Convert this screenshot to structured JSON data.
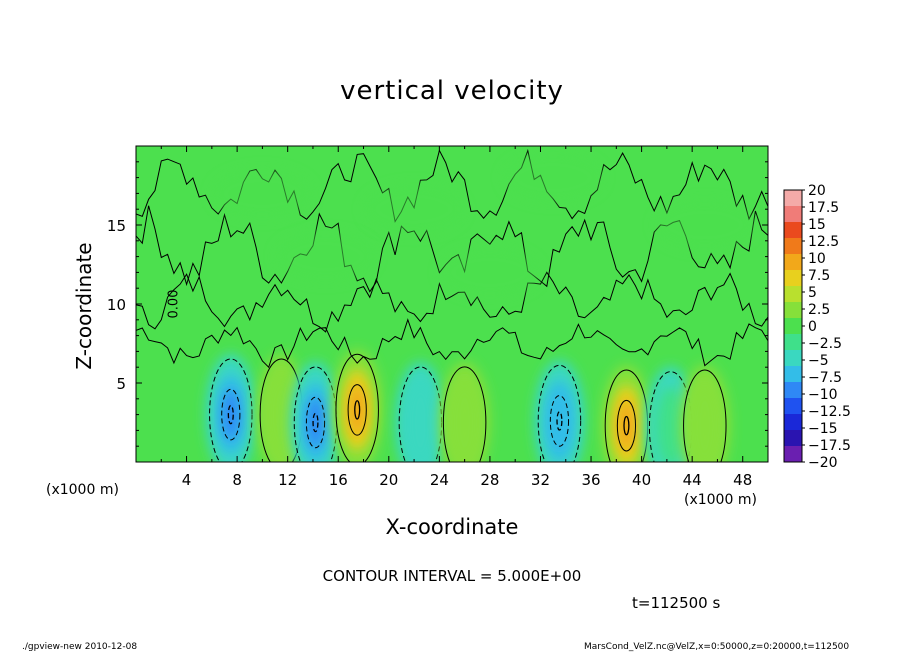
{
  "chart_data": {
    "type": "heatmap",
    "title": "vertical velocity",
    "xlabel": "X-coordinate",
    "ylabel": "Z-coordinate",
    "x_unit_label": "(x1000 m)",
    "x_range": [
      0,
      50
    ],
    "y_range": [
      0,
      20
    ],
    "x_ticks": [
      4,
      8,
      12,
      16,
      20,
      24,
      28,
      32,
      36,
      40,
      44,
      48
    ],
    "y_ticks": [
      5,
      10,
      15
    ],
    "contour_interval_text": "CONTOUR INTERVAL = 5.000E+00",
    "contour_inline_label": "0.00",
    "time_text": "t=112500 s",
    "colorbar": {
      "levels": [
        -20,
        -17.5,
        -15,
        -12.5,
        -10,
        -7.5,
        -5,
        -2.5,
        0,
        2.5,
        5,
        7.5,
        10,
        12.5,
        15,
        17.5,
        20
      ],
      "labels": [
        "20",
        "17.5",
        "15",
        "12.5",
        "10",
        "7.5",
        "5",
        "2.5",
        "0",
        "−2.5",
        "−5",
        "−7.5",
        "−10",
        "−12.5",
        "−15",
        "−17.5",
        "−20"
      ],
      "colors": [
        "#6a1fb0",
        "#2a14b0",
        "#1a28d8",
        "#1f52f0",
        "#2f88f5",
        "#33bde8",
        "#3ad8c0",
        "#3fe08a",
        "#4ce04e",
        "#86e03a",
        "#b9e02e",
        "#e8d01e",
        "#f2a81a",
        "#f07a1a",
        "#ea4a1e",
        "#f07c78",
        "#f4aaa8"
      ]
    },
    "cells": [
      {
        "x": 7.5,
        "z": 3.0,
        "value": -8
      },
      {
        "x": 11.5,
        "z": 3.0,
        "value": 6
      },
      {
        "x": 14.2,
        "z": 2.5,
        "value": -9
      },
      {
        "x": 17.5,
        "z": 3.3,
        "value": 11
      },
      {
        "x": 22.5,
        "z": 2.5,
        "value": -5
      },
      {
        "x": 26.0,
        "z": 2.5,
        "value": 6
      },
      {
        "x": 33.5,
        "z": 2.6,
        "value": -7
      },
      {
        "x": 38.8,
        "z": 2.3,
        "value": 11
      },
      {
        "x": 42.3,
        "z": 2.2,
        "value": -3
      },
      {
        "x": 45.0,
        "z": 2.3,
        "value": 4
      }
    ]
  },
  "footer": {
    "left": "./gpview-new   2010-12-08",
    "right": "MarsCond_VelZ.nc@VelZ,x=0:50000,z=0:20000,t=112500"
  }
}
